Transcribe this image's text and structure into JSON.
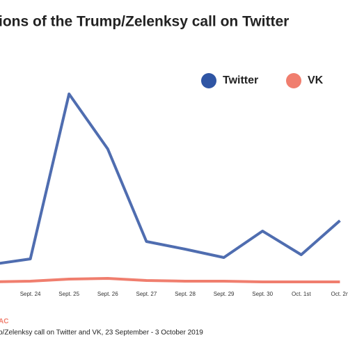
{
  "chart_data": {
    "type": "line",
    "title": "ions of the Trump/Zelenksy call on Twitter",
    "source_label": "AC",
    "caption": "o/Zelenksy call on Twitter and VK, 23 September - 3  October 2019",
    "categories": [
      null,
      "Sept. 24",
      "Sept. 25",
      "Sept. 26",
      "Sept. 27",
      "Sept. 28",
      "Sept. 29",
      "Sept. 30",
      "Oct. 1st",
      "Oct. 2n"
    ],
    "series": [
      {
        "name": "Twitter",
        "color": "#4f6db0",
        "values": [
          28,
          36,
          273,
          194,
          61,
          50,
          38,
          76,
          42,
          91
        ]
      },
      {
        "name": "VK",
        "color": "#f07e6e",
        "values": [
          3,
          4,
          7,
          8,
          5,
          4,
          4,
          3,
          3,
          3
        ]
      }
    ],
    "ylim": [
      0,
      300
    ],
    "legend": "top-right"
  }
}
